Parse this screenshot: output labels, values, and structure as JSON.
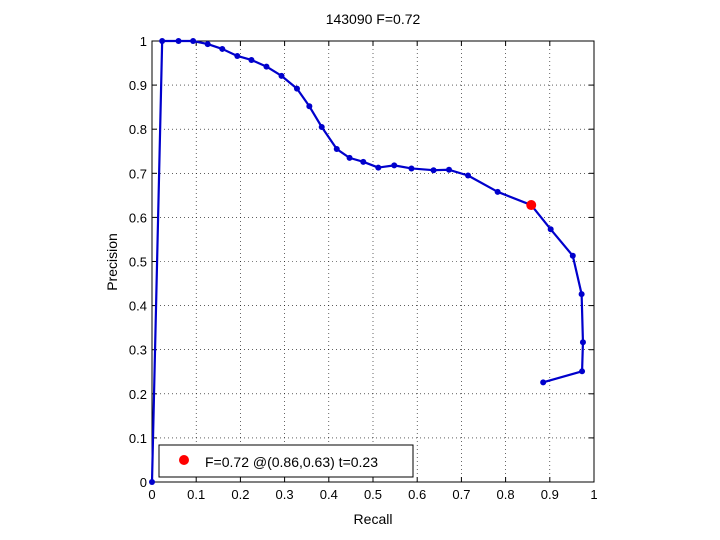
{
  "chart_data": {
    "type": "line",
    "title": "143090 F=0.72",
    "xlabel": "Recall",
    "ylabel": "Precision",
    "xlim": [
      0,
      1
    ],
    "ylim": [
      0,
      1
    ],
    "xticks": [
      "0",
      "0.1",
      "0.2",
      "0.3",
      "0.4",
      "0.5",
      "0.6",
      "0.7",
      "0.8",
      "0.9",
      "1"
    ],
    "yticks": [
      "0",
      "0.1",
      "0.2",
      "0.3",
      "0.4",
      "0.5",
      "0.6",
      "0.7",
      "0.8",
      "0.9",
      "1"
    ],
    "grid": true,
    "series": [
      {
        "color": "#0000cc",
        "points": [
          [
            0.885,
            0.226
          ],
          [
            0.973,
            0.251
          ],
          [
            0.975,
            0.317
          ],
          [
            0.972,
            0.426
          ],
          [
            0.952,
            0.513
          ],
          [
            0.902,
            0.573
          ],
          [
            0.858,
            0.628
          ],
          [
            0.782,
            0.658
          ],
          [
            0.715,
            0.695
          ],
          [
            0.672,
            0.708
          ],
          [
            0.637,
            0.707
          ],
          [
            0.587,
            0.711
          ],
          [
            0.548,
            0.718
          ],
          [
            0.512,
            0.713
          ],
          [
            0.478,
            0.726
          ],
          [
            0.447,
            0.735
          ],
          [
            0.418,
            0.755
          ],
          [
            0.384,
            0.805
          ],
          [
            0.356,
            0.852
          ],
          [
            0.328,
            0.892
          ],
          [
            0.293,
            0.921
          ],
          [
            0.259,
            0.942
          ],
          [
            0.225,
            0.957
          ],
          [
            0.193,
            0.966
          ],
          [
            0.159,
            0.982
          ],
          [
            0.126,
            0.993
          ],
          [
            0.093,
            1.0
          ],
          [
            0.06,
            1.0
          ],
          [
            0.023,
            1.0
          ],
          [
            0.0,
            0.0
          ]
        ]
      }
    ],
    "best_point": {
      "x": 0.858,
      "y": 0.628,
      "color": "#ff0000",
      "legend": "F=0.72 @(0.86,0.63) t=0.23"
    },
    "legend_position": "bottom-left"
  }
}
